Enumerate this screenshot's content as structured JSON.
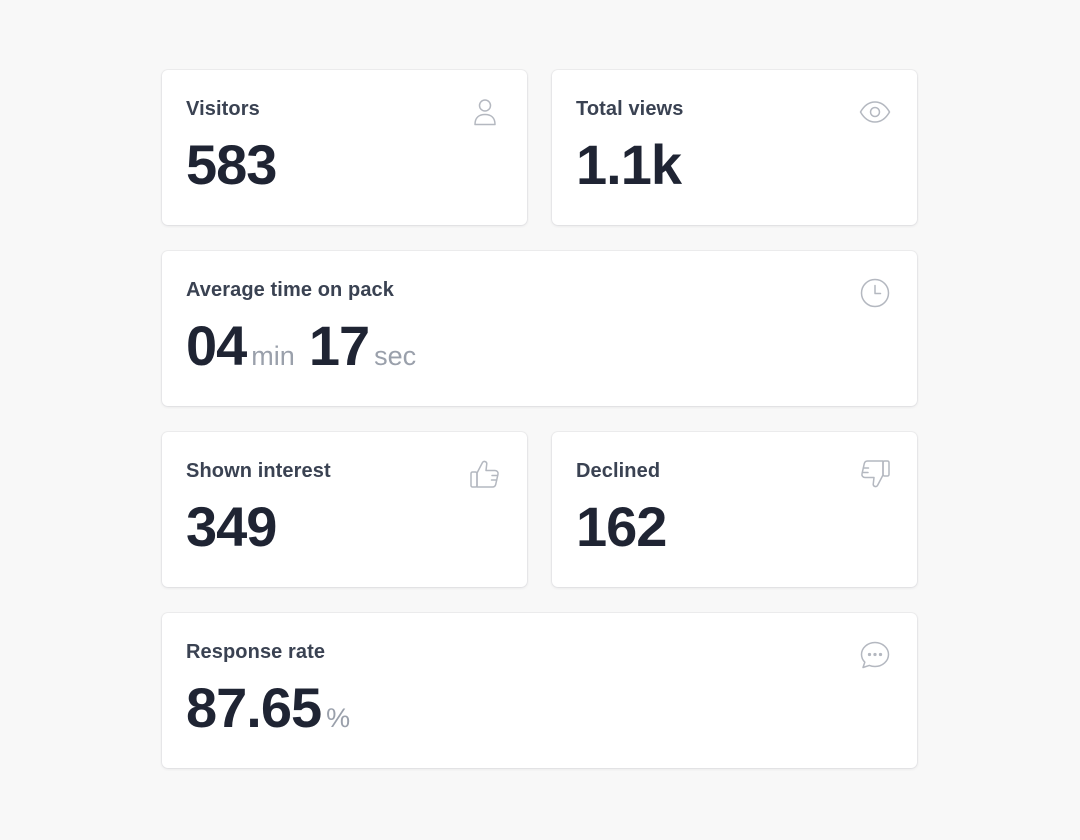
{
  "cards": {
    "visitors": {
      "label": "Visitors",
      "value": "583",
      "icon": "user-icon"
    },
    "total_views": {
      "label": "Total views",
      "value": "1.1k",
      "icon": "eye-icon"
    },
    "avg_time": {
      "label": "Average time on pack",
      "minutes": "04",
      "minutes_unit": "min",
      "seconds": "17",
      "seconds_unit": "sec",
      "icon": "clock-icon"
    },
    "shown_interest": {
      "label": "Shown interest",
      "value": "349",
      "icon": "thumbs-up-icon"
    },
    "declined": {
      "label": "Declined",
      "value": "162",
      "icon": "thumbs-down-icon"
    },
    "response_rate": {
      "label": "Response rate",
      "value": "87.65",
      "unit": "%",
      "icon": "chat-bubble-icon"
    }
  },
  "colors": {
    "background": "#f8f8f8",
    "card": "#ffffff",
    "label": "#3a4252",
    "value": "#1f2433",
    "unit": "#9aa0ab",
    "icon": "#b4b8c0"
  }
}
